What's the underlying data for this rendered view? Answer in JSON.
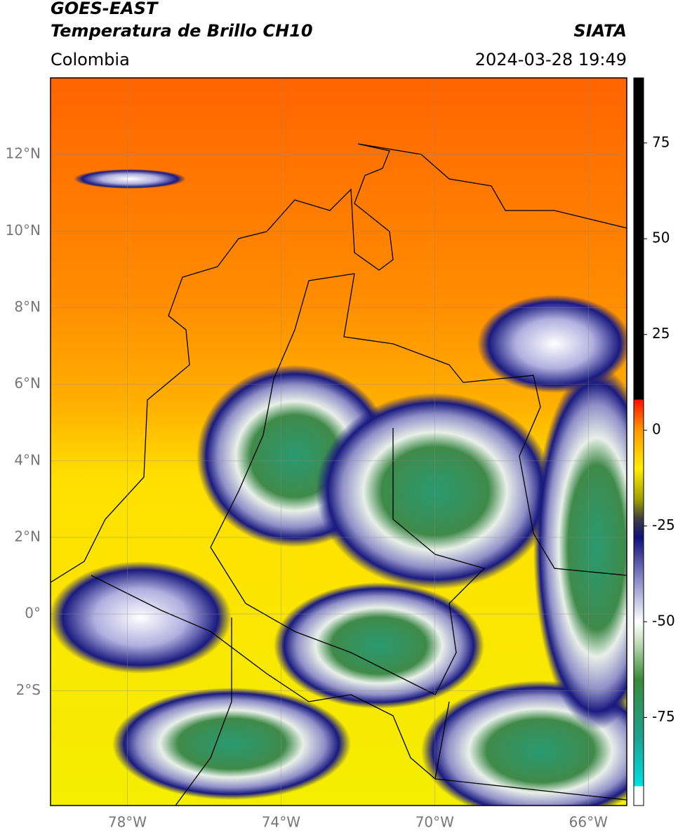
{
  "header": {
    "title": "GOES-EAST",
    "subtitle": "Temperatura de Brillo CH10",
    "source": "SIATA",
    "region": "Colombia",
    "datetime": "2024-03-28 19:49"
  },
  "map": {
    "xlim": [
      -80,
      -65
    ],
    "ylim": [
      -5,
      14
    ],
    "grid": true,
    "xticks": [
      {
        "value": -78,
        "label": "78°W"
      },
      {
        "value": -74,
        "label": "74°W"
      },
      {
        "value": -70,
        "label": "70°W"
      },
      {
        "value": -66,
        "label": "66°W"
      }
    ],
    "yticks": [
      {
        "value": 12,
        "label": "12°N"
      },
      {
        "value": 10,
        "label": "10°N"
      },
      {
        "value": 8,
        "label": "8°N"
      },
      {
        "value": 6,
        "label": "6°N"
      },
      {
        "value": 4,
        "label": "4°N"
      },
      {
        "value": 2,
        "label": "2°N"
      },
      {
        "value": 0,
        "label": "0°"
      },
      {
        "value": -2,
        "label": "2°S"
      }
    ]
  },
  "colorbar": {
    "lim": [
      -98,
      92
    ],
    "ticks": [
      75,
      50,
      25,
      0,
      -25,
      -50,
      -75
    ],
    "stops": [
      {
        "value": -98,
        "color": "#ffffff"
      },
      {
        "value": -93,
        "color": "#ffffff"
      },
      {
        "value": -93,
        "color": "#00e0e0"
      },
      {
        "value": -80,
        "color": "#20a090"
      },
      {
        "value": -65,
        "color": "#3a8a3a"
      },
      {
        "value": -55,
        "color": "#c8e0c0"
      },
      {
        "value": -50,
        "color": "#ffffff"
      },
      {
        "value": -38,
        "color": "#8080c0"
      },
      {
        "value": -28,
        "color": "#10107a"
      },
      {
        "value": -23,
        "color": "#404040"
      },
      {
        "value": -18,
        "color": "#a0a000"
      },
      {
        "value": -10,
        "color": "#ffee00"
      },
      {
        "value": 0,
        "color": "#ff9900"
      },
      {
        "value": 8,
        "color": "#ff1000"
      },
      {
        "value": 8,
        "color": "#000000"
      },
      {
        "value": 92,
        "color": "#000000"
      }
    ]
  }
}
